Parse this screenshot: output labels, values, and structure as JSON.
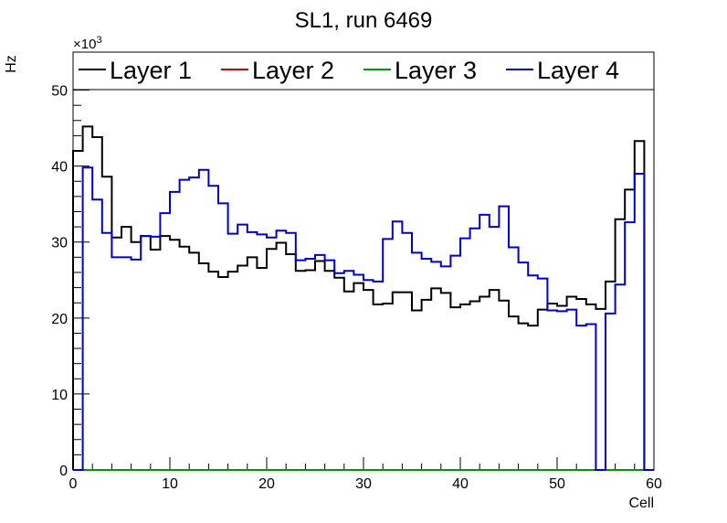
{
  "chart_data": {
    "type": "line",
    "title": "SL1, run 6469",
    "xlabel": "Cell",
    "ylabel": "Hz",
    "y_multiplier_prefix": "×10",
    "y_multiplier_exponent": "3",
    "xlim": [
      0,
      60
    ],
    "ylim": [
      0,
      55
    ],
    "x_ticks": [
      0,
      10,
      20,
      30,
      40,
      50,
      60
    ],
    "y_ticks": [
      0,
      10,
      20,
      30,
      40,
      50
    ],
    "grid": false,
    "legend_position": "top",
    "bin_width": 1,
    "series": [
      {
        "name": "Layer 1",
        "color": "#000000",
        "values": [
          42.0,
          45.2,
          43.8,
          38.6,
          30.6,
          32.0,
          30.0,
          30.8,
          29.0,
          30.8,
          30.3,
          29.4,
          28.6,
          27.2,
          26.1,
          25.4,
          26.1,
          26.9,
          28.0,
          26.6,
          29.1,
          29.9,
          28.4,
          26.2,
          26.3,
          27.5,
          26.2,
          25.3,
          23.5,
          24.6,
          23.7,
          21.8,
          21.9,
          23.4,
          23.4,
          21.0,
          22.4,
          23.9,
          23.3,
          21.4,
          21.8,
          22.2,
          22.8,
          23.7,
          22.3,
          20.2,
          19.3,
          19.0,
          21.1,
          21.9,
          21.6,
          22.8,
          22.5,
          21.8,
          21.2,
          24.8,
          33.0,
          36.9,
          43.3,
          0.0
        ]
      },
      {
        "name": "Layer 2",
        "color": "#cc0000",
        "values": [
          0,
          0,
          0,
          0,
          0,
          0,
          0,
          0,
          0,
          0,
          0,
          0,
          0,
          0,
          0,
          0,
          0,
          0,
          0,
          0,
          0,
          0,
          0,
          0,
          0,
          0,
          0,
          0,
          0,
          0,
          0,
          0,
          0,
          0,
          0,
          0,
          0,
          0,
          0,
          0,
          0,
          0,
          0,
          0,
          0,
          0,
          0,
          0,
          0,
          0,
          0,
          0,
          0,
          0,
          0,
          0,
          0,
          0,
          0,
          0
        ]
      },
      {
        "name": "Layer 3",
        "color": "#009900",
        "values": [
          0,
          0,
          0,
          0,
          0,
          0,
          0,
          0,
          0,
          0,
          0,
          0,
          0,
          0,
          0,
          0,
          0,
          0,
          0,
          0,
          0,
          0,
          0,
          0,
          0,
          0,
          0,
          0,
          0,
          0,
          0,
          0,
          0,
          0,
          0,
          0,
          0,
          0,
          0,
          0,
          0,
          0,
          0,
          0,
          0,
          0,
          0,
          0,
          0,
          0,
          0,
          0,
          0,
          0,
          0,
          0,
          0,
          0,
          0,
          0
        ]
      },
      {
        "name": "Layer 4",
        "color": "#0000cc",
        "values": [
          0.0,
          39.8,
          35.6,
          31.2,
          28.0,
          28.0,
          27.7,
          30.8,
          30.7,
          33.8,
          36.6,
          38.2,
          38.5,
          39.5,
          37.4,
          35.1,
          31.1,
          32.3,
          31.3,
          31.0,
          30.6,
          31.5,
          31.2,
          27.6,
          27.8,
          28.3,
          27.6,
          25.9,
          26.2,
          25.7,
          25.0,
          24.8,
          30.4,
          32.7,
          31.2,
          28.6,
          27.8,
          27.4,
          26.8,
          28.2,
          30.5,
          31.8,
          33.6,
          32.0,
          34.7,
          29.3,
          27.3,
          25.6,
          25.2,
          21.0,
          20.9,
          21.1,
          19.0,
          19.2,
          0.0,
          20.6,
          24.4,
          32.6,
          39.0,
          0.0
        ]
      }
    ]
  }
}
